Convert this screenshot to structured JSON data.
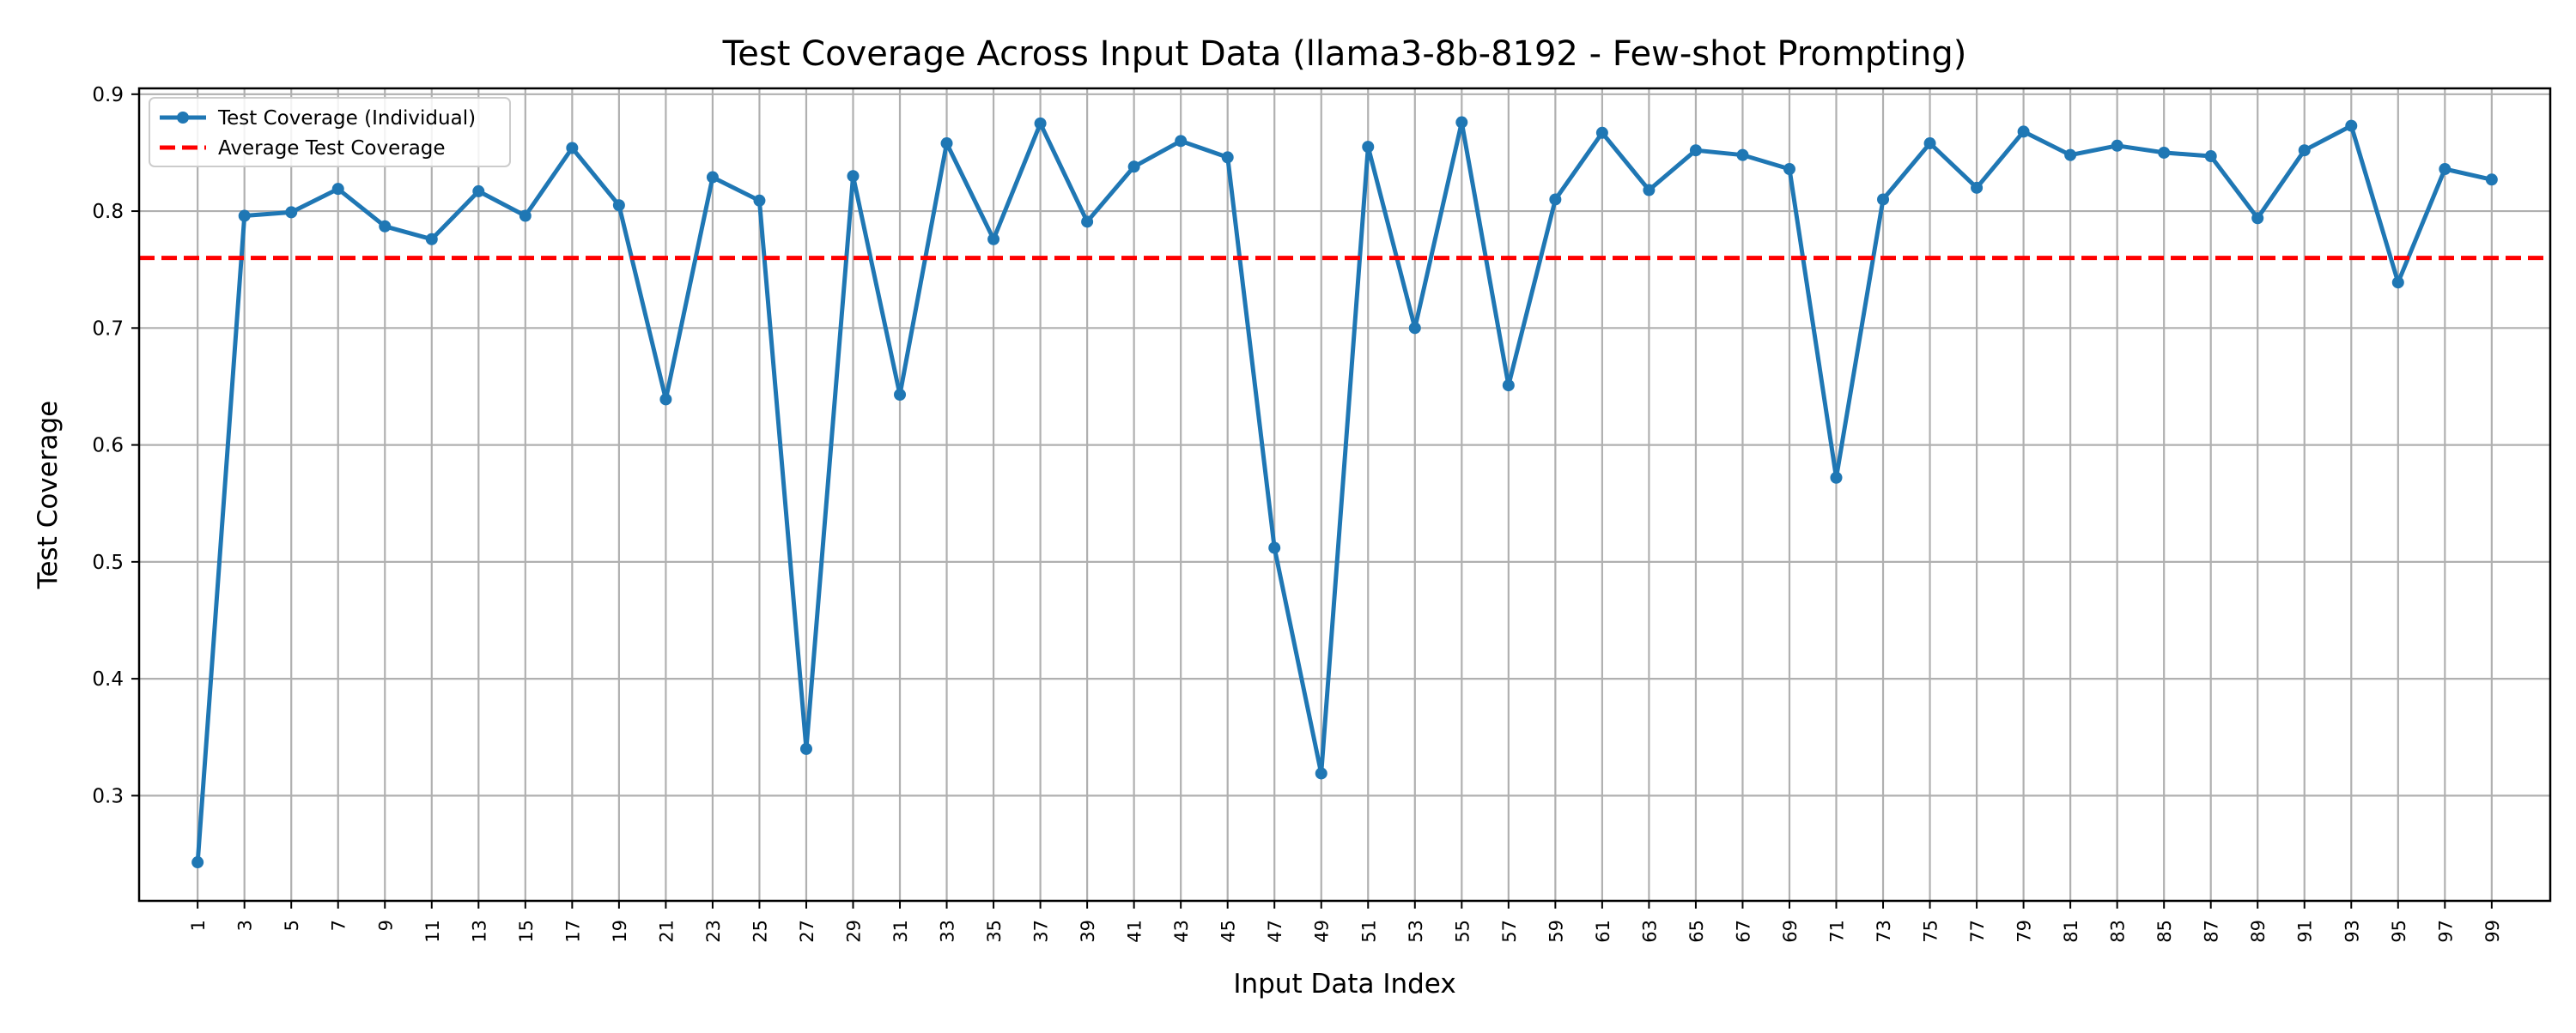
{
  "chart_data": {
    "type": "line",
    "title": "Test Coverage Across Input Data (llama3-8b-8192 - Few-shot Prompting)",
    "xlabel": "Input Data Index",
    "ylabel": "Test Coverage",
    "xlim": [
      -1.5,
      101.5
    ],
    "ylim": [
      0.21,
      0.905
    ],
    "x_ticks": [
      1,
      3,
      5,
      7,
      9,
      11,
      13,
      15,
      17,
      19,
      21,
      23,
      25,
      27,
      29,
      31,
      33,
      35,
      37,
      39,
      41,
      43,
      45,
      47,
      49,
      51,
      53,
      55,
      57,
      59,
      61,
      63,
      65,
      67,
      69,
      71,
      73,
      75,
      77,
      79,
      81,
      83,
      85,
      87,
      89,
      91,
      93,
      95,
      97,
      99
    ],
    "y_ticks": [
      0.3,
      0.4,
      0.5,
      0.6,
      0.7,
      0.8,
      0.9
    ],
    "grid": true,
    "legend_position": "top-left",
    "series": [
      {
        "name": "Test Coverage (Individual)",
        "color": "#1f77b4",
        "style": "solid",
        "marker": "circle",
        "x": [
          1,
          3,
          5,
          7,
          9,
          11,
          13,
          15,
          17,
          19,
          21,
          23,
          25,
          27,
          29,
          31,
          33,
          35,
          37,
          39,
          41,
          43,
          45,
          47,
          49,
          51,
          53,
          55,
          57,
          59,
          61,
          63,
          65,
          67,
          69,
          71,
          73,
          75,
          77,
          79,
          81,
          83,
          85,
          87,
          89,
          91,
          93,
          95,
          97,
          99
        ],
        "y": [
          0.243,
          0.796,
          0.799,
          0.819,
          0.787,
          0.776,
          0.817,
          0.796,
          0.854,
          0.805,
          0.639,
          0.829,
          0.809,
          0.34,
          0.83,
          0.643,
          0.858,
          0.776,
          0.875,
          0.791,
          0.838,
          0.86,
          0.846,
          0.512,
          0.319,
          0.855,
          0.7,
          0.876,
          0.651,
          0.81,
          0.867,
          0.818,
          0.852,
          0.848,
          0.836,
          0.572,
          0.81,
          0.858,
          0.82,
          0.868,
          0.848,
          0.856,
          0.85,
          0.847,
          0.794,
          0.852,
          0.873,
          0.739,
          0.836,
          0.827
        ]
      },
      {
        "name": "Average Test Coverage",
        "color": "#ff0000",
        "style": "dashed",
        "y_constant": 0.76
      }
    ]
  }
}
